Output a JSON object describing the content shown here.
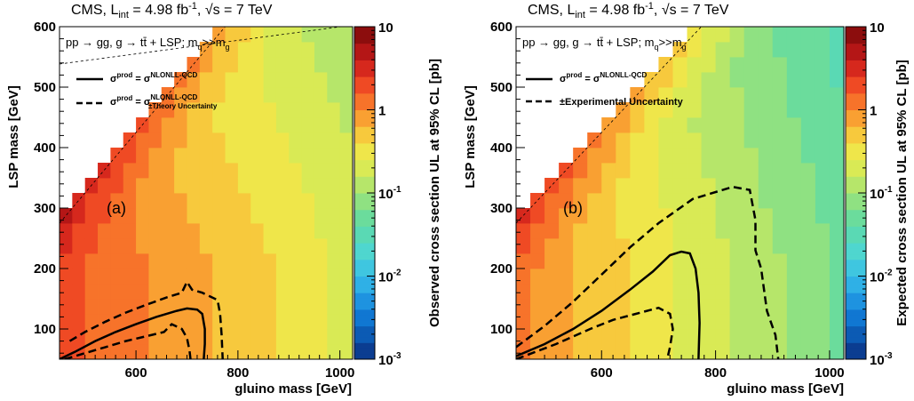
{
  "chart_data": [
    {
      "type": "heatmap",
      "panel_label": "(a)",
      "title_parts": {
        "prefix": "CMS, L",
        "sub": "int",
        "mid": " = 4.98 fb",
        "sup": "-1",
        "comma": ", ",
        "sqrt": "√s",
        "suffix": " = 7 TeV"
      },
      "process": {
        "a": "pp → ",
        "g1": "g",
        "g2": "g",
        "c1": ", ",
        "g3": "g",
        "b": " → tt̄ + LSP; m",
        "q": "q",
        "gg": ">>m",
        "sg": "g"
      },
      "xlabel": "gluino mass [GeV]",
      "ylabel": "LSP mass [GeV]",
      "zlabel": "Observed cross section UL at 95% CL [pb]",
      "xlim": [
        450,
        1025
      ],
      "ylim": [
        50,
        600
      ],
      "xticks": [
        "600",
        "800",
        "1000"
      ],
      "yticks": [
        "100",
        "200",
        "300",
        "400",
        "500",
        "600"
      ],
      "z_range": [
        0.001,
        10
      ],
      "z_log": true,
      "zticks": [
        {
          "main": "10",
          "exp": ""
        },
        {
          "main": "1",
          "exp": ""
        },
        {
          "main": "10",
          "exp": "-1"
        },
        {
          "main": "10",
          "exp": "-2"
        },
        {
          "main": "10",
          "exp": "-3"
        }
      ],
      "legend": [
        {
          "style": "solid",
          "lhs": "σ",
          "lhs_sup": "prod",
          "eq": " = σ",
          "rhs_sup": "NLONLL-QCD",
          "rhs_sub": ""
        },
        {
          "style": "dashed",
          "lhs": "σ",
          "lhs_sup": "prod",
          "eq": " = σ",
          "rhs_sup": "NLONLL-QCD",
          "rhs_sub": "±Theory Uncertainty"
        }
      ],
      "contours": [
        {
          "style": "solid",
          "points": [
            [
              450,
              50
            ],
            [
              480,
              62
            ],
            [
              520,
              80
            ],
            [
              560,
              95
            ],
            [
              600,
              108
            ],
            [
              640,
              120
            ],
            [
              680,
              130
            ],
            [
              700,
              134
            ],
            [
              720,
              132
            ],
            [
              730,
              125
            ],
            [
              735,
              100
            ],
            [
              735,
              75
            ],
            [
              733,
              50
            ]
          ]
        },
        {
          "style": "dashed",
          "points": [
            [
              470,
              80
            ],
            [
              500,
              95
            ],
            [
              540,
              112
            ],
            [
              580,
              127
            ],
            [
              620,
              140
            ],
            [
              660,
              152
            ],
            [
              690,
              160
            ],
            [
              700,
              178
            ],
            [
              710,
              165
            ],
            [
              730,
              160
            ],
            [
              760,
              148
            ],
            [
              765,
              125
            ],
            [
              768,
              90
            ],
            [
              770,
              50
            ]
          ]
        },
        {
          "style": "dashed",
          "points": [
            [
              460,
              50
            ],
            [
              500,
              60
            ],
            [
              540,
              70
            ],
            [
              580,
              80
            ],
            [
              620,
              88
            ],
            [
              655,
              95
            ],
            [
              670,
              108
            ],
            [
              690,
              100
            ],
            [
              700,
              85
            ],
            [
              705,
              65
            ],
            [
              707,
              50
            ]
          ]
        }
      ]
    },
    {
      "type": "heatmap",
      "panel_label": "(b)",
      "title_parts": {
        "prefix": "CMS, L",
        "sub": "int",
        "mid": " = 4.98 fb",
        "sup": "-1",
        "comma": ", ",
        "sqrt": "√s",
        "suffix": " = 7 TeV"
      },
      "process": {
        "a": "pp → ",
        "g1": "g",
        "g2": "g",
        "c1": ", ",
        "g3": "g",
        "b": " → tt̄ + LSP; m",
        "q": "q",
        "gg": ">>m",
        "sg": "g"
      },
      "xlabel": "gluino mass [GeV]",
      "ylabel": "LSP mass [GeV]",
      "zlabel": "Expected cross section UL at 95% CL [pb]",
      "xlim": [
        450,
        1025
      ],
      "ylim": [
        50,
        600
      ],
      "xticks": [
        "600",
        "800",
        "1000"
      ],
      "yticks": [
        "100",
        "200",
        "300",
        "400",
        "500",
        "600"
      ],
      "z_range": [
        0.001,
        10
      ],
      "z_log": true,
      "zticks": [
        {
          "main": "10",
          "exp": ""
        },
        {
          "main": "1",
          "exp": ""
        },
        {
          "main": "10",
          "exp": "-1"
        },
        {
          "main": "10",
          "exp": "-2"
        },
        {
          "main": "10",
          "exp": "-3"
        }
      ],
      "legend": [
        {
          "style": "solid",
          "lhs": "σ",
          "lhs_sup": "prod",
          "eq": " = σ",
          "rhs_sup": "NLONLL-QCD",
          "rhs_sub": ""
        },
        {
          "style": "dashed",
          "text": "±Experimental Uncertainty"
        }
      ],
      "contours": [
        {
          "style": "solid",
          "points": [
            [
              450,
              55
            ],
            [
              500,
              75
            ],
            [
              550,
              100
            ],
            [
              600,
              130
            ],
            [
              650,
              165
            ],
            [
              690,
              195
            ],
            [
              720,
              222
            ],
            [
              740,
              228
            ],
            [
              755,
              225
            ],
            [
              765,
              200
            ],
            [
              770,
              160
            ],
            [
              772,
              110
            ],
            [
              770,
              50
            ]
          ]
        },
        {
          "style": "dashed",
          "points": [
            [
              450,
              70
            ],
            [
              500,
              105
            ],
            [
              550,
              145
            ],
            [
              600,
              190
            ],
            [
              650,
              235
            ],
            [
              700,
              275
            ],
            [
              760,
              315
            ],
            [
              830,
              335
            ],
            [
              860,
              330
            ],
            [
              870,
              280
            ],
            [
              870,
              230
            ],
            [
              880,
              200
            ],
            [
              890,
              130
            ],
            [
              905,
              90
            ],
            [
              910,
              50
            ]
          ]
        },
        {
          "style": "dashed",
          "points": [
            [
              450,
              50
            ],
            [
              520,
              75
            ],
            [
              580,
              100
            ],
            [
              620,
              115
            ],
            [
              660,
              125
            ],
            [
              700,
              135
            ],
            [
              720,
              125
            ],
            [
              725,
              100
            ],
            [
              720,
              70
            ],
            [
              715,
              50
            ]
          ]
        }
      ]
    }
  ]
}
